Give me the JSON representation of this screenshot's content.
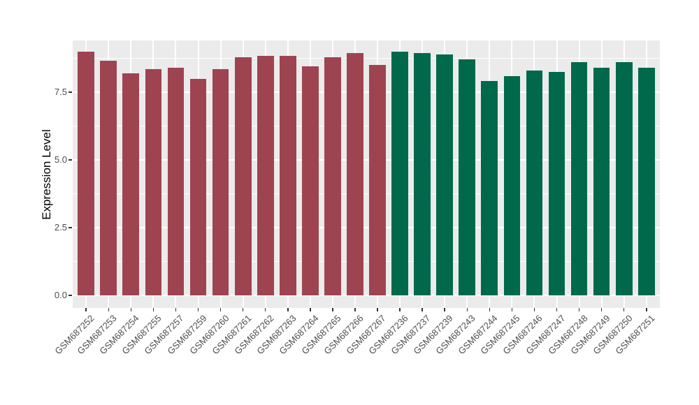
{
  "chart_data": {
    "type": "bar",
    "title": "",
    "xlabel": "",
    "ylabel": "Expression Level",
    "categories": [
      "GSM687252",
      "GSM687253",
      "GSM687254",
      "GSM687255",
      "GSM687257",
      "GSM687259",
      "GSM687260",
      "GSM687261",
      "GSM687262",
      "GSM687263",
      "GSM687264",
      "GSM687265",
      "GSM687266",
      "GSM687267",
      "GSM687236",
      "GSM687237",
      "GSM687239",
      "GSM687243",
      "GSM687244",
      "GSM687245",
      "GSM687246",
      "GSM687247",
      "GSM687248",
      "GSM687249",
      "GSM687250",
      "GSM687251"
    ],
    "values": [
      9.0,
      8.65,
      8.2,
      8.35,
      8.4,
      8.0,
      8.35,
      8.8,
      8.85,
      8.85,
      8.45,
      8.8,
      8.95,
      8.5,
      9.0,
      8.95,
      8.9,
      8.7,
      7.9,
      8.1,
      8.3,
      8.25,
      8.6,
      8.4,
      8.6,
      8.4
    ],
    "groups": [
      0,
      0,
      0,
      0,
      0,
      0,
      0,
      0,
      0,
      0,
      0,
      0,
      0,
      0,
      1,
      1,
      1,
      1,
      1,
      1,
      1,
      1,
      1,
      1,
      1,
      1
    ],
    "group_colors": [
      "#9E4450",
      "#00694B"
    ],
    "yticks": {
      "values": [
        0,
        2.5,
        5,
        7.5
      ],
      "labels": [
        "0.0",
        "2.5",
        "5.0",
        "7.5"
      ]
    },
    "y_minor": [
      1.25,
      3.75,
      6.25,
      8.75
    ],
    "ylim": [
      0,
      9.4
    ],
    "grid": true,
    "legend": "none",
    "panel_bg": "#EBEBEB",
    "grid_color": "#FFFFFF",
    "axis_text_color": "#4D4D4D",
    "axis_title_color": "#000000"
  }
}
